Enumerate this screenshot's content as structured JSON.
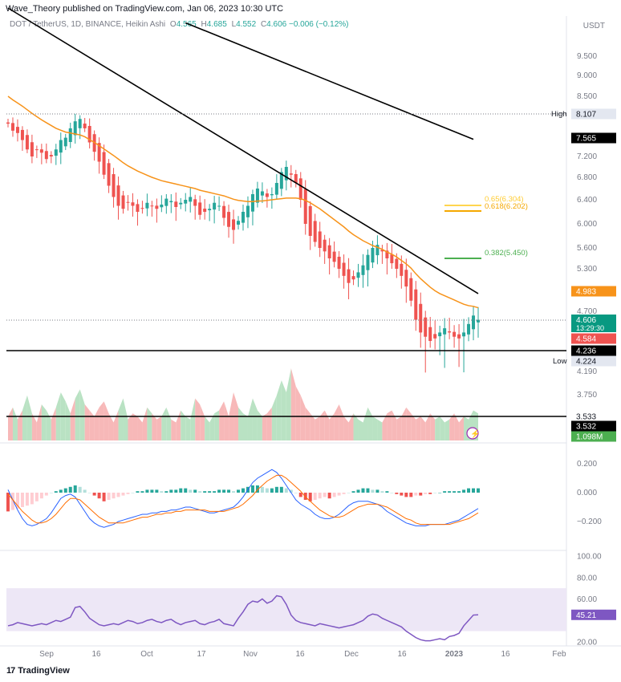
{
  "header": {
    "publisher": "Wave_Theory published on TradingView.com, Jan 06, 2023 10:30 UTC",
    "symbol": "DOT / TetherUS, 1D, BINANCE, Heikin Ashi",
    "o_label": "O",
    "o_value": "4.565",
    "h_label": "H",
    "h_value": "4.685",
    "l_label": "L",
    "l_value": "4.552",
    "c_label": "C",
    "c_value": "4.606",
    "change": "−0.006 (−0.12%)",
    "axis_unit": "USDT"
  },
  "brand": {
    "name": "TradingView"
  },
  "colors": {
    "up": "#26a69a",
    "down": "#ef5350",
    "ema": "#f7931a",
    "trend": "#000000",
    "fib_618": "#f5a800",
    "fib_382": "#4caf50",
    "macd": "#2962ff",
    "signal": "#ff6d00",
    "rsi": "#7e57c2",
    "rsi_band": "#ede7f6",
    "vol_up": "#b9e2c3",
    "vol_down": "#f7b8b8"
  },
  "chart_data": [
    {
      "type": "candlestick",
      "name": "price",
      "x_ticks": [
        "Sep",
        "16",
        "Oct",
        "17",
        "Nov",
        "16",
        "Dec",
        "16",
        "2023",
        "16",
        "Feb"
      ],
      "y_ticks": [
        "9.500",
        "9.000",
        "8.500",
        "7.200",
        "6.800",
        "6.400",
        "6.000",
        "5.600",
        "5.300",
        "4.700",
        "4.190",
        "3.750"
      ],
      "ylim": [
        3.5,
        10.2
      ],
      "close": [
        7.9,
        7.75,
        7.7,
        7.55,
        7.35,
        7.2,
        7.35,
        7.28,
        7.15,
        7.2,
        7.35,
        7.55,
        7.6,
        7.8,
        7.95,
        8.0,
        7.8,
        7.5,
        7.3,
        7.1,
        6.85,
        6.65,
        6.45,
        6.3,
        6.25,
        6.35,
        6.3,
        6.2,
        6.25,
        6.35,
        6.3,
        6.25,
        6.32,
        6.42,
        6.38,
        6.28,
        6.35,
        6.4,
        6.45,
        6.3,
        6.15,
        6.2,
        6.25,
        6.35,
        6.3,
        6.1,
        5.95,
        5.9,
        6.05,
        6.2,
        6.3,
        6.5,
        6.6,
        6.55,
        6.45,
        6.5,
        6.7,
        6.9,
        7.0,
        6.85,
        6.7,
        6.4,
        6.0,
        5.8,
        5.7,
        5.6,
        5.55,
        5.45,
        5.4,
        5.3,
        5.2,
        5.1,
        5.15,
        5.25,
        5.35,
        5.5,
        5.6,
        5.65,
        5.55,
        5.45,
        5.38,
        5.3,
        5.2,
        5.05,
        4.85,
        4.6,
        4.45,
        4.4,
        4.35,
        4.38,
        4.45,
        4.5,
        4.45,
        4.4,
        4.38,
        4.45,
        4.55,
        4.65,
        4.6
      ],
      "ema": [
        8.5,
        8.42,
        8.35,
        8.28,
        8.2,
        8.12,
        8.05,
        7.98,
        7.92,
        7.86,
        7.8,
        7.76,
        7.72,
        7.7,
        7.68,
        7.66,
        7.62,
        7.56,
        7.5,
        7.43,
        7.36,
        7.29,
        7.22,
        7.15,
        7.08,
        7.02,
        6.97,
        6.92,
        6.88,
        6.84,
        6.8,
        6.77,
        6.74,
        6.72,
        6.7,
        6.68,
        6.66,
        6.64,
        6.62,
        6.6,
        6.57,
        6.55,
        6.53,
        6.51,
        6.49,
        6.47,
        6.44,
        6.41,
        6.39,
        6.38,
        6.37,
        6.37,
        6.38,
        6.38,
        6.39,
        6.4,
        6.41,
        6.42,
        6.43,
        6.43,
        6.43,
        6.42,
        6.39,
        6.35,
        6.3,
        6.25,
        6.19,
        6.13,
        6.07,
        6.01,
        5.95,
        5.88,
        5.82,
        5.77,
        5.72,
        5.68,
        5.64,
        5.61,
        5.58,
        5.54,
        5.51,
        5.47,
        5.42,
        5.37,
        5.31,
        5.23,
        5.16,
        5.1,
        5.04,
        4.99,
        4.95,
        4.92,
        4.89,
        4.86,
        4.83,
        4.8,
        4.78,
        4.77,
        4.75
      ]
    },
    {
      "type": "line",
      "name": "trendlines",
      "series": [
        {
          "x": [
            0,
            98
          ],
          "y": [
            10.8,
            4.95
          ]
        },
        {
          "x": [
            37,
            97
          ],
          "y": [
            10.4,
            7.565
          ]
        }
      ]
    },
    {
      "type": "annotation",
      "name": "levels",
      "horizontal": [
        {
          "label": "High",
          "value": "8.107"
        },
        {
          "label": "Low",
          "value": "4.224"
        },
        {
          "value": "4.236"
        },
        {
          "value": "3.533"
        }
      ],
      "fib": [
        {
          "label": "0.65(6.304)",
          "value": 6.304
        },
        {
          "label": "0.618(6.202)",
          "value": 6.202
        },
        {
          "label": "0.382(5.450)",
          "value": 5.45
        }
      ],
      "tags": [
        {
          "value": "7.565"
        },
        {
          "value": "4.983"
        },
        {
          "value": "4.606",
          "sub": "13:29:30"
        },
        {
          "value": "4.584"
        },
        {
          "value": "3.532"
        },
        {
          "value": "1.098M"
        }
      ]
    },
    {
      "type": "area",
      "name": "volume",
      "values": [
        0.4,
        0.55,
        0.35,
        0.5,
        0.75,
        0.45,
        0.3,
        0.6,
        0.5,
        0.35,
        0.55,
        0.8,
        0.65,
        0.45,
        0.7,
        0.85,
        0.6,
        0.5,
        0.4,
        0.55,
        0.65,
        0.45,
        0.3,
        0.5,
        0.7,
        0.35,
        0.45,
        0.4,
        0.3,
        0.55,
        0.45,
        0.35,
        0.4,
        0.55,
        0.35,
        0.3,
        0.5,
        0.4,
        0.35,
        0.7,
        0.6,
        0.4,
        0.3,
        0.45,
        0.5,
        0.65,
        0.4,
        0.8,
        0.55,
        0.45,
        0.4,
        0.7,
        0.5,
        0.4,
        0.45,
        0.55,
        0.75,
        1.0,
        0.8,
        1.2,
        0.9,
        0.75,
        0.55,
        0.45,
        0.35,
        0.4,
        0.5,
        0.35,
        0.45,
        0.6,
        0.4,
        0.3,
        0.45,
        0.35,
        0.3,
        0.55,
        0.4,
        0.35,
        0.3,
        0.45,
        0.5,
        0.35,
        0.4,
        0.55,
        0.45,
        0.35,
        0.4,
        0.3,
        0.45,
        0.35,
        0.4,
        0.3,
        0.35,
        0.45,
        0.3,
        0.4,
        0.35,
        0.5,
        0.45
      ],
      "up": [
        0,
        1,
        0,
        1,
        1,
        0,
        0,
        1,
        1,
        0,
        1,
        1,
        1,
        0,
        1,
        1,
        0,
        0,
        0,
        0,
        0,
        0,
        0,
        1,
        1,
        0,
        0,
        0,
        0,
        1,
        0,
        0,
        1,
        1,
        0,
        0,
        1,
        1,
        1,
        0,
        0,
        1,
        1,
        1,
        0,
        0,
        0,
        0,
        1,
        1,
        1,
        1,
        1,
        0,
        0,
        1,
        1,
        1,
        1,
        0,
        0,
        0,
        0,
        0,
        0,
        0,
        0,
        0,
        0,
        0,
        0,
        0,
        1,
        1,
        1,
        1,
        1,
        1,
        0,
        0,
        0,
        0,
        0,
        0,
        0,
        0,
        0,
        0,
        0,
        1,
        1,
        1,
        0,
        0,
        0,
        1,
        1,
        1,
        1
      ]
    },
    {
      "type": "histogram",
      "name": "MACD",
      "y_ticks": [
        "0.200",
        "0.000",
        "−0.200"
      ],
      "ylim": [
        -0.3,
        0.3
      ],
      "hist": [
        -0.13,
        -0.12,
        -0.11,
        -0.1,
        -0.09,
        -0.08,
        -0.06,
        -0.04,
        -0.02,
        0.0,
        0.01,
        0.02,
        0.03,
        0.04,
        0.05,
        0.04,
        0.02,
        0.0,
        -0.02,
        -0.04,
        -0.06,
        -0.05,
        -0.04,
        -0.03,
        -0.02,
        -0.01,
        0.0,
        0.01,
        0.01,
        0.02,
        0.02,
        0.02,
        0.01,
        0.01,
        0.02,
        0.02,
        0.03,
        0.03,
        0.02,
        0.02,
        0.01,
        0.01,
        0.01,
        0.01,
        0.02,
        0.02,
        0.02,
        0.01,
        0.02,
        0.03,
        0.04,
        0.05,
        0.05,
        0.04,
        0.03,
        0.03,
        0.04,
        0.04,
        0.03,
        0.02,
        0.0,
        -0.03,
        -0.05,
        -0.06,
        -0.05,
        -0.04,
        -0.03,
        -0.04,
        -0.03,
        -0.02,
        -0.01,
        0.0,
        0.01,
        0.02,
        0.03,
        0.03,
        0.02,
        0.02,
        0.01,
        0.01,
        0.0,
        -0.01,
        -0.02,
        -0.03,
        -0.03,
        -0.02,
        -0.02,
        -0.01,
        -0.01,
        0.0,
        0.0,
        0.01,
        0.01,
        0.01,
        0.01,
        0.02,
        0.03,
        0.03,
        0.03
      ],
      "macd": [
        0.02,
        -0.05,
        -0.12,
        -0.18,
        -0.22,
        -0.23,
        -0.22,
        -0.2,
        -0.18,
        -0.14,
        -0.09,
        -0.04,
        -0.02,
        -0.01,
        -0.03,
        -0.08,
        -0.13,
        -0.18,
        -0.21,
        -0.23,
        -0.24,
        -0.23,
        -0.22,
        -0.2,
        -0.19,
        -0.18,
        -0.17,
        -0.16,
        -0.15,
        -0.15,
        -0.14,
        -0.14,
        -0.13,
        -0.13,
        -0.12,
        -0.12,
        -0.11,
        -0.1,
        -0.1,
        -0.11,
        -0.12,
        -0.13,
        -0.14,
        -0.14,
        -0.13,
        -0.12,
        -0.11,
        -0.1,
        -0.07,
        -0.03,
        0.02,
        0.07,
        0.1,
        0.12,
        0.14,
        0.16,
        0.14,
        0.1,
        0.05,
        0.0,
        -0.05,
        -0.08,
        -0.1,
        -0.12,
        -0.15,
        -0.17,
        -0.18,
        -0.18,
        -0.17,
        -0.15,
        -0.12,
        -0.09,
        -0.07,
        -0.06,
        -0.06,
        -0.06,
        -0.07,
        -0.08,
        -0.1,
        -0.13,
        -0.15,
        -0.17,
        -0.19,
        -0.21,
        -0.22,
        -0.23,
        -0.23,
        -0.23,
        -0.22,
        -0.22,
        -0.22,
        -0.22,
        -0.21,
        -0.2,
        -0.19,
        -0.17,
        -0.15,
        -0.13,
        -0.11
      ],
      "signal": [
        -0.01,
        -0.05,
        -0.09,
        -0.13,
        -0.16,
        -0.19,
        -0.21,
        -0.21,
        -0.2,
        -0.18,
        -0.15,
        -0.11,
        -0.07,
        -0.04,
        -0.04,
        -0.05,
        -0.08,
        -0.11,
        -0.14,
        -0.17,
        -0.19,
        -0.21,
        -0.21,
        -0.21,
        -0.21,
        -0.2,
        -0.19,
        -0.18,
        -0.17,
        -0.17,
        -0.16,
        -0.15,
        -0.15,
        -0.14,
        -0.14,
        -0.13,
        -0.13,
        -0.12,
        -0.12,
        -0.12,
        -0.12,
        -0.12,
        -0.13,
        -0.13,
        -0.13,
        -0.13,
        -0.12,
        -0.11,
        -0.1,
        -0.08,
        -0.05,
        -0.02,
        0.02,
        0.05,
        0.08,
        0.1,
        0.12,
        0.12,
        0.1,
        0.07,
        0.04,
        0.01,
        -0.03,
        -0.06,
        -0.09,
        -0.12,
        -0.14,
        -0.16,
        -0.17,
        -0.17,
        -0.16,
        -0.14,
        -0.12,
        -0.1,
        -0.09,
        -0.08,
        -0.08,
        -0.08,
        -0.09,
        -0.1,
        -0.12,
        -0.14,
        -0.16,
        -0.18,
        -0.19,
        -0.21,
        -0.22,
        -0.22,
        -0.22,
        -0.22,
        -0.22,
        -0.22,
        -0.22,
        -0.21,
        -0.2,
        -0.19,
        -0.18,
        -0.16,
        -0.14
      ]
    },
    {
      "type": "line",
      "name": "RSI",
      "y_ticks": [
        "100.00",
        "80.00",
        "60.00",
        "45.21",
        "20.00"
      ],
      "ylim": [
        20,
        100
      ],
      "band": [
        30,
        70
      ],
      "values": [
        35,
        36,
        38,
        37,
        36,
        35,
        36,
        37,
        36,
        38,
        40,
        39,
        41,
        43,
        52,
        53,
        48,
        42,
        39,
        36,
        35,
        36,
        37,
        36,
        38,
        40,
        39,
        37,
        38,
        40,
        41,
        39,
        38,
        40,
        41,
        38,
        36,
        38,
        39,
        40,
        37,
        36,
        38,
        39,
        41,
        37,
        36,
        35,
        42,
        48,
        55,
        58,
        57,
        60,
        56,
        58,
        63,
        62,
        55,
        45,
        40,
        38,
        37,
        36,
        35,
        37,
        36,
        35,
        34,
        33,
        34,
        35,
        36,
        38,
        40,
        44,
        46,
        45,
        42,
        40,
        38,
        36,
        34,
        30,
        27,
        24,
        22,
        21,
        21,
        22,
        23,
        22,
        25,
        26,
        28,
        35,
        40,
        45,
        45.21
      ]
    }
  ],
  "labels": {
    "high": "High",
    "high_val": "8.107",
    "low": "Low",
    "low_val": "4.224",
    "p_ema": "4.983",
    "p_trend": "7.565",
    "p_last": "4.606",
    "p_timer": "13:29:30",
    "p_prev": "4.584",
    "p_support": "4.236",
    "v_support": "3.533",
    "v_prev": "3.532",
    "v_last": "1.098M",
    "rsi_last": "45.21",
    "fib65": "0.65(6.304)",
    "fib618": "0.618(6.202)",
    "fib382": "0.382(5.450)"
  }
}
